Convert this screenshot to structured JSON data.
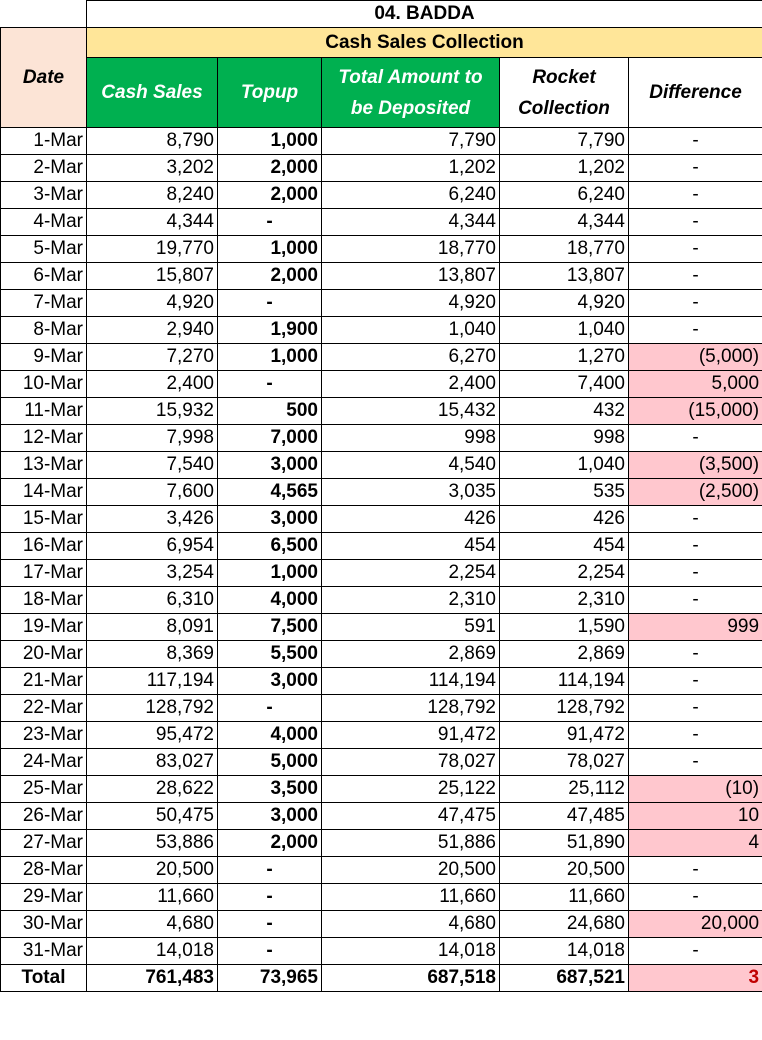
{
  "title": "04. BADDA",
  "band_label": "Cash Sales Collection",
  "headers": {
    "date": "Date",
    "cash_sales": "Cash Sales",
    "topup": "Topup",
    "total_amount": "Total Amount to be Deposited",
    "rocket": "Rocket Collection",
    "difference": "Difference"
  },
  "rows": [
    {
      "date": "1-Mar",
      "cash": "8,790",
      "topup": "1,000",
      "total": "7,790",
      "rocket": "7,790",
      "diff": "-",
      "flag": false
    },
    {
      "date": "2-Mar",
      "cash": "3,202",
      "topup": "2,000",
      "total": "1,202",
      "rocket": "1,202",
      "diff": "-",
      "flag": false
    },
    {
      "date": "3-Mar",
      "cash": "8,240",
      "topup": "2,000",
      "total": "6,240",
      "rocket": "6,240",
      "diff": "-",
      "flag": false
    },
    {
      "date": "4-Mar",
      "cash": "4,344",
      "topup": "-",
      "total": "4,344",
      "rocket": "4,344",
      "diff": "-",
      "flag": false
    },
    {
      "date": "5-Mar",
      "cash": "19,770",
      "topup": "1,000",
      "total": "18,770",
      "rocket": "18,770",
      "diff": "-",
      "flag": false
    },
    {
      "date": "6-Mar",
      "cash": "15,807",
      "topup": "2,000",
      "total": "13,807",
      "rocket": "13,807",
      "diff": "-",
      "flag": false
    },
    {
      "date": "7-Mar",
      "cash": "4,920",
      "topup": "-",
      "total": "4,920",
      "rocket": "4,920",
      "diff": "-",
      "flag": false
    },
    {
      "date": "8-Mar",
      "cash": "2,940",
      "topup": "1,900",
      "total": "1,040",
      "rocket": "1,040",
      "diff": "-",
      "flag": false
    },
    {
      "date": "9-Mar",
      "cash": "7,270",
      "topup": "1,000",
      "total": "6,270",
      "rocket": "1,270",
      "diff": "(5,000)",
      "flag": true
    },
    {
      "date": "10-Mar",
      "cash": "2,400",
      "topup": "-",
      "total": "2,400",
      "rocket": "7,400",
      "diff": "5,000",
      "flag": true
    },
    {
      "date": "11-Mar",
      "cash": "15,932",
      "topup": "500",
      "total": "15,432",
      "rocket": "432",
      "diff": "(15,000)",
      "flag": true
    },
    {
      "date": "12-Mar",
      "cash": "7,998",
      "topup": "7,000",
      "total": "998",
      "rocket": "998",
      "diff": "-",
      "flag": false
    },
    {
      "date": "13-Mar",
      "cash": "7,540",
      "topup": "3,000",
      "total": "4,540",
      "rocket": "1,040",
      "diff": "(3,500)",
      "flag": true
    },
    {
      "date": "14-Mar",
      "cash": "7,600",
      "topup": "4,565",
      "total": "3,035",
      "rocket": "535",
      "diff": "(2,500)",
      "flag": true
    },
    {
      "date": "15-Mar",
      "cash": "3,426",
      "topup": "3,000",
      "total": "426",
      "rocket": "426",
      "diff": "-",
      "flag": false
    },
    {
      "date": "16-Mar",
      "cash": "6,954",
      "topup": "6,500",
      "total": "454",
      "rocket": "454",
      "diff": "-",
      "flag": false
    },
    {
      "date": "17-Mar",
      "cash": "3,254",
      "topup": "1,000",
      "total": "2,254",
      "rocket": "2,254",
      "diff": "-",
      "flag": false
    },
    {
      "date": "18-Mar",
      "cash": "6,310",
      "topup": "4,000",
      "total": "2,310",
      "rocket": "2,310",
      "diff": "-",
      "flag": false
    },
    {
      "date": "19-Mar",
      "cash": "8,091",
      "topup": "7,500",
      "total": "591",
      "rocket": "1,590",
      "diff": "999",
      "flag": true
    },
    {
      "date": "20-Mar",
      "cash": "8,369",
      "topup": "5,500",
      "total": "2,869",
      "rocket": "2,869",
      "diff": "-",
      "flag": false
    },
    {
      "date": "21-Mar",
      "cash": "117,194",
      "topup": "3,000",
      "total": "114,194",
      "rocket": "114,194",
      "diff": "-",
      "flag": false
    },
    {
      "date": "22-Mar",
      "cash": "128,792",
      "topup": "-",
      "total": "128,792",
      "rocket": "128,792",
      "diff": "-",
      "flag": false
    },
    {
      "date": "23-Mar",
      "cash": "95,472",
      "topup": "4,000",
      "total": "91,472",
      "rocket": "91,472",
      "diff": "-",
      "flag": false
    },
    {
      "date": "24-Mar",
      "cash": "83,027",
      "topup": "5,000",
      "total": "78,027",
      "rocket": "78,027",
      "diff": "-",
      "flag": false
    },
    {
      "date": "25-Mar",
      "cash": "28,622",
      "topup": "3,500",
      "total": "25,122",
      "rocket": "25,112",
      "diff": "(10)",
      "flag": true
    },
    {
      "date": "26-Mar",
      "cash": "50,475",
      "topup": "3,000",
      "total": "47,475",
      "rocket": "47,485",
      "diff": "10",
      "flag": true
    },
    {
      "date": "27-Mar",
      "cash": "53,886",
      "topup": "2,000",
      "total": "51,886",
      "rocket": "51,890",
      "diff": "4",
      "flag": true
    },
    {
      "date": "28-Mar",
      "cash": "20,500",
      "topup": "-",
      "total": "20,500",
      "rocket": "20,500",
      "diff": "-",
      "flag": false
    },
    {
      "date": "29-Mar",
      "cash": "11,660",
      "topup": "-",
      "total": "11,660",
      "rocket": "11,660",
      "diff": "-",
      "flag": false
    },
    {
      "date": "30-Mar",
      "cash": "4,680",
      "topup": "-",
      "total": "4,680",
      "rocket": "24,680",
      "diff": "20,000",
      "flag": true
    },
    {
      "date": "31-Mar",
      "cash": "14,018",
      "topup": "-",
      "total": "14,018",
      "rocket": "14,018",
      "diff": "-",
      "flag": false
    }
  ],
  "totals": {
    "label": "Total",
    "cash": "761,483",
    "topup": "73,965",
    "total": "687,518",
    "rocket": "687,521",
    "diff": "3"
  }
}
